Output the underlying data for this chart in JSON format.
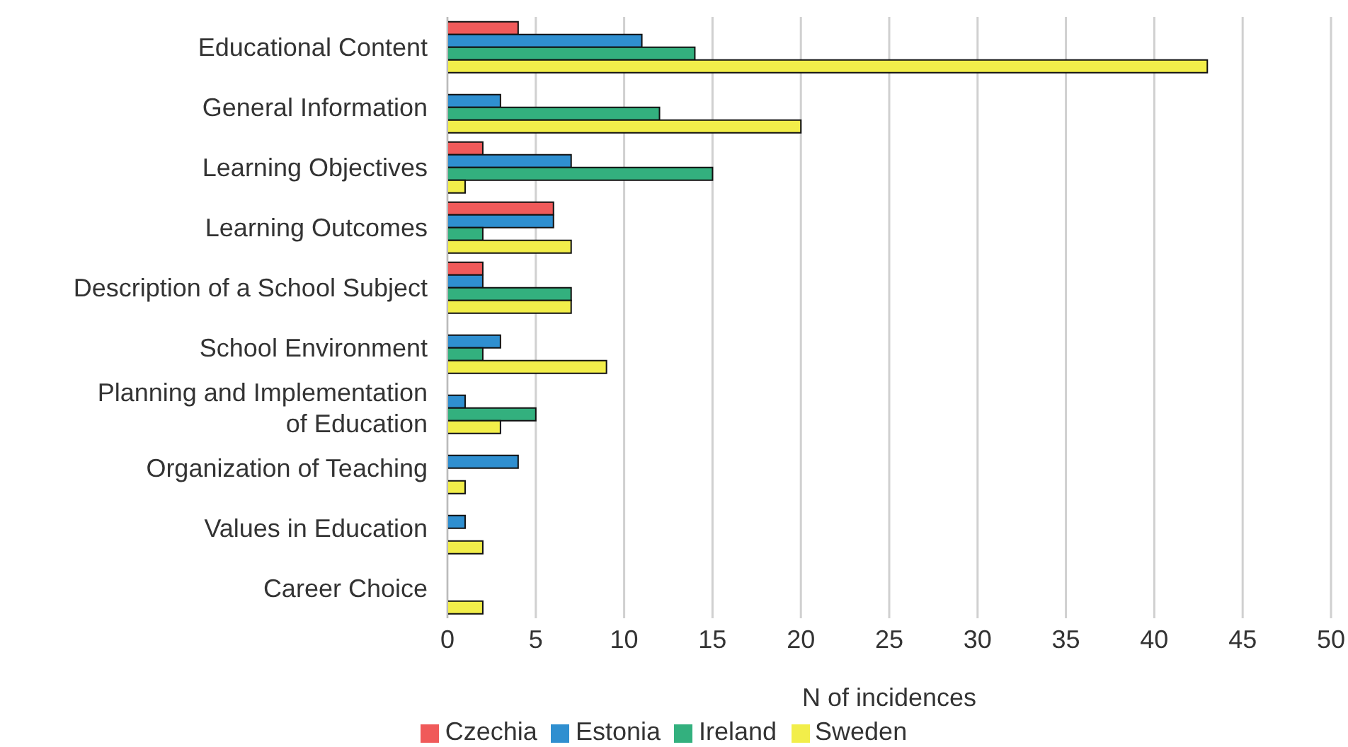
{
  "chart_data": {
    "type": "bar",
    "orientation": "horizontal",
    "xlabel": "N of incidences",
    "categories": [
      "Educational Content",
      "General Information",
      "Learning Objectives",
      "Learning Outcomes",
      "Description of a School Subject",
      "School Environment",
      "Planning and Implementation of Education",
      "Organization of Teaching",
      "Values in Education",
      "Career Choice"
    ],
    "series": [
      {
        "name": "Czechia",
        "color": "#f05a5a",
        "values": [
          4,
          0,
          2,
          6,
          2,
          0,
          0,
          0,
          0,
          0
        ]
      },
      {
        "name": "Estonia",
        "color": "#2f8fd0",
        "values": [
          11,
          3,
          7,
          6,
          2,
          3,
          1,
          4,
          1,
          0
        ]
      },
      {
        "name": "Ireland",
        "color": "#33b07e",
        "values": [
          14,
          12,
          15,
          2,
          7,
          2,
          5,
          0,
          0,
          0
        ]
      },
      {
        "name": "Sweden",
        "color": "#f2ee4a",
        "values": [
          43,
          20,
          1,
          7,
          7,
          9,
          3,
          1,
          2,
          2
        ]
      }
    ],
    "xlim": [
      0,
      50
    ],
    "xticks": [
      0,
      5,
      10,
      15,
      20,
      25,
      30,
      35,
      40,
      45,
      50
    ],
    "grid": "x",
    "legend": "bottom"
  }
}
